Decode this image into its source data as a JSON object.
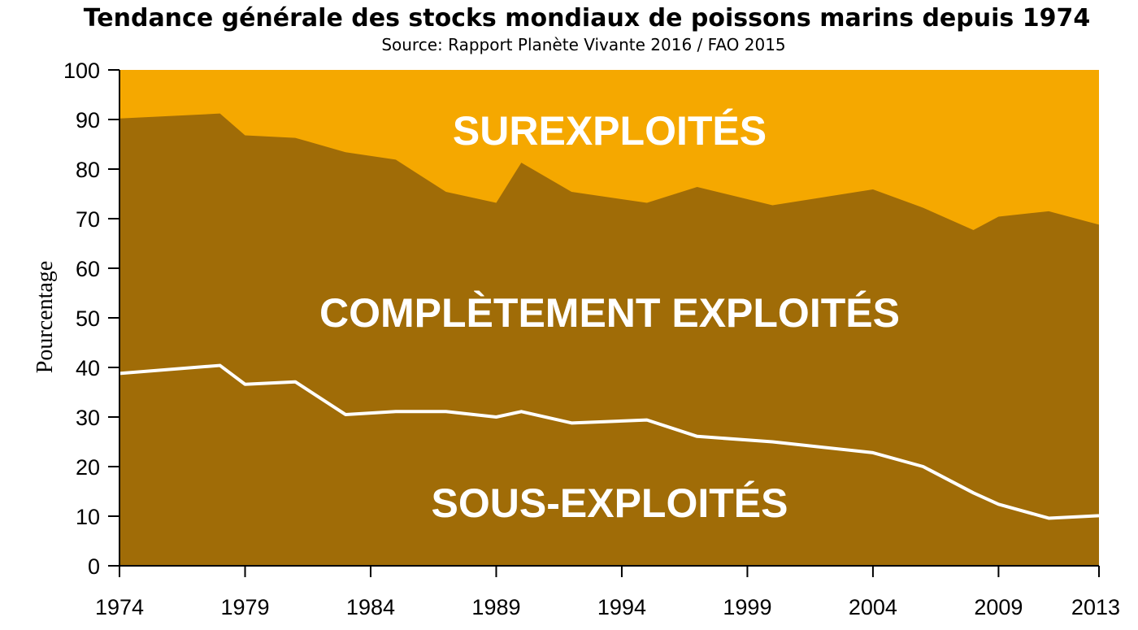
{
  "chart_data": {
    "type": "area",
    "title": "Tendance générale des stocks mondiaux de poissons marins depuis 1974",
    "subtitle": "Source: Rapport Planète Vivante 2016 / FAO 2015",
    "xlabel": "",
    "ylabel": "Pourcentage",
    "xlim": [
      1974,
      2013
    ],
    "ylim": [
      0,
      100
    ],
    "x_ticks": [
      1974,
      1979,
      1984,
      1989,
      1994,
      1999,
      2004,
      2009,
      2013
    ],
    "y_ticks": [
      0,
      10,
      20,
      30,
      40,
      50,
      60,
      70,
      80,
      90,
      100
    ],
    "grid": false,
    "region_labels": {
      "top": "SUREXPLOITÉS",
      "middle": "COMPLÈTEMENT EXPLOITÉS",
      "bottom": "SOUS-EXPLOITÉS"
    },
    "colors": {
      "overexploited": "#F5A800",
      "fully_exploited": "#A06C07",
      "underexploited_line": "#FFFFFF"
    },
    "series": [
      {
        "name": "SOUS-EXPLOITÉS",
        "x": [
          1974,
          1978,
          1979,
          1981,
          1983,
          1985,
          1987,
          1989,
          1990,
          1992,
          1995,
          1997,
          2000,
          2004,
          2006,
          2008,
          2009,
          2011,
          2013
        ],
        "values": [
          38.8,
          40.4,
          36.6,
          37.1,
          30.5,
          31.1,
          31.1,
          30.0,
          31.1,
          28.8,
          29.4,
          26.1,
          25.0,
          22.8,
          20.0,
          14.7,
          12.4,
          9.6,
          10.1
        ]
      },
      {
        "name": "COMPLÈTEMENT EXPLOITÉS (limite supérieure)",
        "x": [
          1974,
          1978,
          1979,
          1981,
          1983,
          1985,
          1987,
          1989,
          1990,
          1992,
          1995,
          1997,
          2000,
          2004,
          2006,
          2008,
          2009,
          2011,
          2013
        ],
        "values": [
          90.2,
          91.2,
          86.8,
          86.3,
          83.4,
          81.9,
          75.4,
          73.2,
          81.3,
          75.4,
          73.2,
          76.4,
          72.7,
          75.9,
          72.2,
          67.7,
          70.4,
          71.5,
          68.8
        ]
      }
    ]
  }
}
